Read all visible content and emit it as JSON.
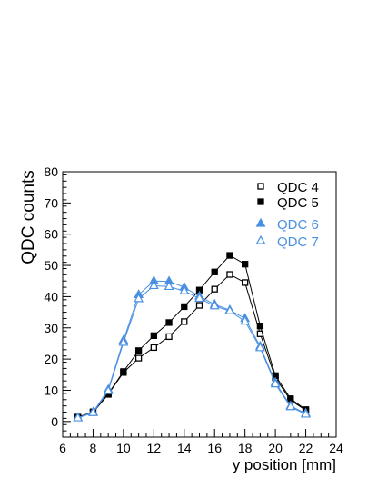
{
  "chart_data": {
    "type": "line",
    "xlabel": "y position  [mm]",
    "ylabel": "QDC counts",
    "xlim": [
      6,
      24
    ],
    "ylim": [
      -5,
      80
    ],
    "x_ticks": [
      6,
      8,
      10,
      12,
      14,
      16,
      18,
      20,
      22,
      24
    ],
    "y_ticks": [
      0,
      10,
      20,
      30,
      40,
      50,
      60,
      70,
      80
    ],
    "x_tick_labels": [
      "6",
      "8",
      "10",
      "12",
      "14",
      "16",
      "18",
      "20",
      "22",
      "24"
    ],
    "y_tick_labels": [
      "0",
      "10",
      "20",
      "30",
      "40",
      "50",
      "60",
      "70",
      "80"
    ],
    "grid": false,
    "legend_position": "top-right",
    "x": [
      7,
      8,
      9,
      10,
      11,
      12,
      13,
      14,
      15,
      16,
      17,
      18,
      19,
      20,
      21,
      22
    ],
    "series": [
      {
        "name": "QDC 4",
        "color": "#000000",
        "marker": "open-square",
        "values": [
          1.3,
          2.9,
          8.7,
          15.7,
          20.3,
          23.7,
          27.2,
          32.0,
          37.2,
          42.4,
          47.1,
          44.5,
          28.1,
          14.0,
          6.8,
          3.6
        ]
      },
      {
        "name": "QDC 5",
        "color": "#000000",
        "marker": "filled-square",
        "values": [
          1.4,
          3.1,
          8.9,
          16.0,
          22.7,
          27.5,
          31.7,
          36.8,
          42.1,
          47.9,
          53.2,
          50.4,
          30.6,
          14.7,
          7.3,
          3.8
        ]
      },
      {
        "name": "QDC 6",
        "color": "#4a90e2",
        "marker": "filled-triangle",
        "values": [
          1.2,
          3.0,
          10.2,
          26.0,
          40.6,
          45.0,
          44.9,
          43.0,
          40.1,
          37.5,
          35.7,
          33.0,
          24.1,
          12.5,
          5.0,
          2.6
        ]
      },
      {
        "name": "QDC 7",
        "color": "#4a90e2",
        "marker": "open-triangle",
        "values": [
          1.1,
          2.8,
          9.8,
          25.3,
          39.3,
          43.5,
          43.2,
          41.8,
          39.4,
          37.0,
          35.4,
          32.1,
          23.6,
          12.0,
          4.7,
          2.3
        ]
      }
    ]
  }
}
